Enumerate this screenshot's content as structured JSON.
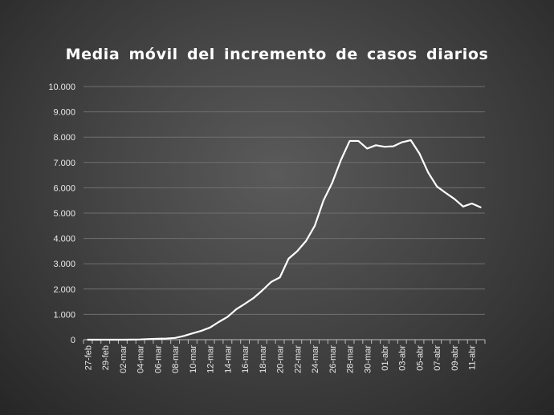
{
  "chart_data": {
    "type": "line",
    "title": "Media móvil del incremento de casos diarios",
    "xlabel": "",
    "ylabel": "",
    "ylim": [
      0,
      10000
    ],
    "y_ticks": [
      "0",
      "1.000",
      "2.000",
      "3.000",
      "4.000",
      "5.000",
      "6.000",
      "7.000",
      "8.000",
      "9.000",
      "10.000"
    ],
    "x_tick_labels": [
      "27-feb",
      "29-feb",
      "02-mar",
      "04-mar",
      "06-mar",
      "08-mar",
      "10-mar",
      "12-mar",
      "14-mar",
      "16-mar",
      "18-mar",
      "20-mar",
      "22-mar",
      "24-mar",
      "26-mar",
      "28-mar",
      "30-mar",
      "01-abr",
      "03-abr",
      "05-abr",
      "07-abr",
      "09-abr",
      "11-abr"
    ],
    "grid": true,
    "line_color": "#ffffff",
    "series": [
      {
        "values": [
          0,
          0,
          0,
          0,
          0,
          5,
          10,
          25,
          35,
          45,
          70,
          150,
          250,
          350,
          480,
          700,
          900,
          1200,
          1420,
          1650,
          1950,
          2280,
          2460,
          3200,
          3500,
          3900,
          4500,
          5500,
          6200,
          7100,
          7850,
          7850,
          7550,
          7680,
          7620,
          7640,
          7800,
          7880,
          7350,
          6600,
          6050,
          5800,
          5560,
          5260,
          5380,
          5230
        ]
      }
    ]
  }
}
